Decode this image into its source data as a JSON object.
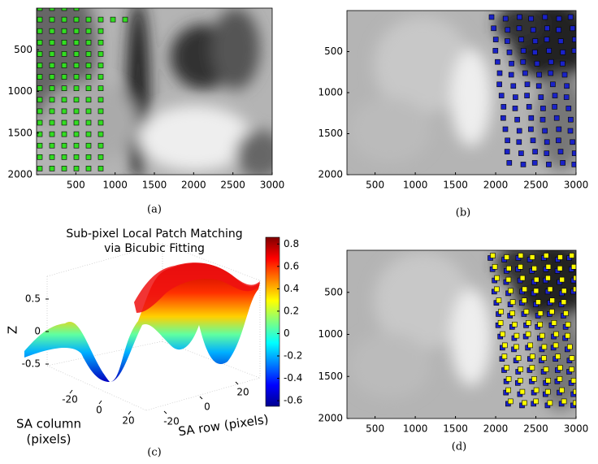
{
  "chart_data": [
    {
      "type": "image",
      "caption": "(a)",
      "xlim": [
        0,
        3000
      ],
      "ylim": [
        2000,
        0
      ],
      "xticks": [
        500,
        1000,
        1500,
        2000,
        2500,
        3000
      ],
      "yticks": [
        500,
        1000,
        1500,
        2000
      ],
      "markers": [
        "#33dd22"
      ]
    },
    {
      "type": "image",
      "caption": "(b)",
      "xlim": [
        150,
        3000
      ],
      "ylim": [
        2000,
        0
      ],
      "xticks": [
        500,
        1000,
        1500,
        2000,
        2500,
        3000
      ],
      "yticks": [
        500,
        1000,
        1500,
        2000
      ],
      "markers": [
        "#1a22c8"
      ]
    },
    {
      "type": "surface",
      "caption": "(c)",
      "title": [
        "Sub-pixel Local Patch Matching",
        "via Bicubic Fitting"
      ],
      "xlabel": [
        "SA column",
        "(pixels)"
      ],
      "ylabel": "SA row (pixels)",
      "zlabel": "Z",
      "xticks": [
        -20,
        0,
        20
      ],
      "yticks": [
        -20,
        0,
        20
      ],
      "zlim": [
        -0.75,
        0.75
      ],
      "zticks": [
        -0.5,
        0,
        0.5
      ],
      "clim": [
        -0.65,
        0.86
      ],
      "cticks": [
        -0.6,
        -0.4,
        -0.2,
        0,
        0.2,
        0.4,
        0.6,
        0.8
      ]
    },
    {
      "type": "image",
      "caption": "(d)",
      "xlim": [
        150,
        3000
      ],
      "ylim": [
        2000,
        0
      ],
      "xticks": [
        500,
        1000,
        1500,
        2000,
        2500,
        3000
      ],
      "yticks": [
        500,
        1000,
        1500,
        2000
      ],
      "markers": [
        "#1a22c8",
        "#ffff00"
      ]
    }
  ]
}
